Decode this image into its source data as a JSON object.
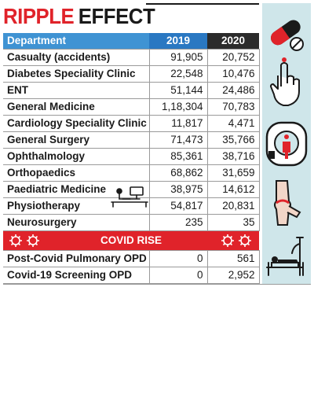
{
  "title": {
    "part1": "RIPPLE",
    "part2": "EFFECT"
  },
  "headers": {
    "department": "Department",
    "y2019": "2019",
    "y2020": "2020"
  },
  "rows": [
    {
      "department": "Casualty (accidents)",
      "y2019": "91,905",
      "y2020": "20,752"
    },
    {
      "department": "Diabetes Speciality Clinic",
      "y2019": "22,548",
      "y2020": "10,476"
    },
    {
      "department": "ENT",
      "y2019": "51,144",
      "y2020": "24,486"
    },
    {
      "department": "General Medicine",
      "y2019": "1,18,304",
      "y2020": "70,783"
    },
    {
      "department": "Cardiology Speciality Clinic",
      "y2019": "11,817",
      "y2020": "4,471"
    },
    {
      "department": "General Surgery",
      "y2019": "71,473",
      "y2020": "35,766"
    },
    {
      "department": "Ophthalmology",
      "y2019": "85,361",
      "y2020": "38,716"
    },
    {
      "department": "Orthopaedics",
      "y2019": "68,862",
      "y2020": "31,659"
    },
    {
      "department": "Paediatric Medicine",
      "y2019": "38,975",
      "y2020": "14,612"
    },
    {
      "department": "Physiotherapy",
      "y2019": "54,817",
      "y2020": "20,831"
    },
    {
      "department": "Neurosurgery",
      "y2019": "235",
      "y2020": "35"
    }
  ],
  "covid_banner": "COVID RISE",
  "covid_rows": [
    {
      "department": "Post-Covid Pulmonary OPD",
      "y2019": "0",
      "y2020": "561"
    },
    {
      "department": "Covid-19 Screening OPD",
      "y2019": "0",
      "y2020": "2,952"
    }
  ],
  "colors": {
    "accent_red": "#e0232a",
    "header_blue": "#3f93d3",
    "header_dark_blue": "#2a78c2",
    "header_dark": "#2b2b2b",
    "sidebar_bg": "#cfe6ea"
  },
  "icons": [
    "pills-icon",
    "finger-icon",
    "mri-scanner-icon",
    "knee-joint-icon",
    "hospital-bed-icon",
    "physiotherapy-icon",
    "virus-icon"
  ]
}
